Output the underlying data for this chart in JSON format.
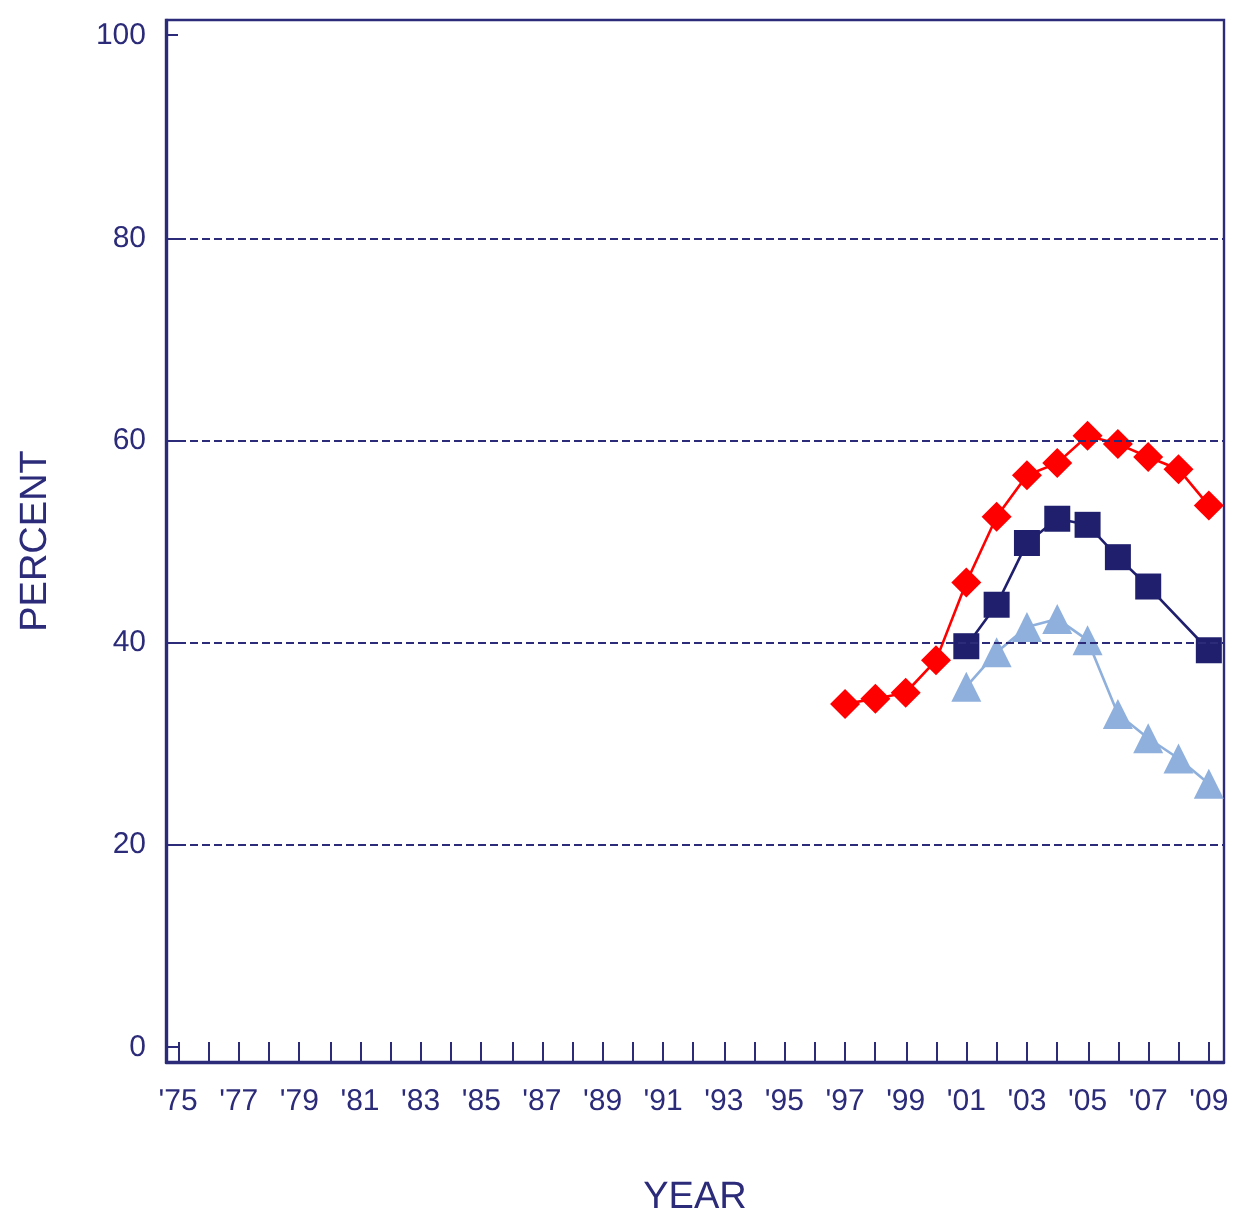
{
  "chart_data": {
    "type": "line",
    "xlabel": "YEAR",
    "ylabel": "PERCENT",
    "x": [
      1997,
      1998,
      1999,
      2000,
      2001,
      2002,
      2003,
      2004,
      2005,
      2006,
      2007,
      2008,
      2009
    ],
    "series": [
      {
        "color": "#ff0000",
        "marker": "diamond",
        "values": [
          33.9,
          34.4,
          35.0,
          38.2,
          45.9,
          52.4,
          56.5,
          57.7,
          60.4,
          59.6,
          58.3,
          57.1,
          53.5
        ]
      },
      {
        "color": "#1f1f6e",
        "marker": "square",
        "values": [
          null,
          null,
          null,
          null,
          39.6,
          43.7,
          49.8,
          52.2,
          51.6,
          48.4,
          45.5,
          null,
          39.2
        ]
      },
      {
        "color": "#8fb0dc",
        "marker": "triangle",
        "values": [
          null,
          null,
          null,
          null,
          35.6,
          39.0,
          41.5,
          42.3,
          40.2,
          32.9,
          30.5,
          28.5,
          26.0
        ]
      }
    ],
    "xlim": [
      1974.6,
      2009.5
    ],
    "xticks": [
      {
        "value": 1975,
        "label": "'75"
      },
      {
        "value": 1976,
        "label": null
      },
      {
        "value": 1977,
        "label": "'77"
      },
      {
        "value": 1978,
        "label": null
      },
      {
        "value": 1979,
        "label": "'79"
      },
      {
        "value": 1980,
        "label": null
      },
      {
        "value": 1981,
        "label": "'81"
      },
      {
        "value": 1982,
        "label": null
      },
      {
        "value": 1983,
        "label": "'83"
      },
      {
        "value": 1984,
        "label": null
      },
      {
        "value": 1985,
        "label": "'85"
      },
      {
        "value": 1986,
        "label": null
      },
      {
        "value": 1987,
        "label": "'87"
      },
      {
        "value": 1988,
        "label": null
      },
      {
        "value": 1989,
        "label": "'89"
      },
      {
        "value": 1990,
        "label": null
      },
      {
        "value": 1991,
        "label": "'91"
      },
      {
        "value": 1992,
        "label": null
      },
      {
        "value": 1993,
        "label": "'93"
      },
      {
        "value": 1994,
        "label": null
      },
      {
        "value": 1995,
        "label": "'95"
      },
      {
        "value": 1996,
        "label": null
      },
      {
        "value": 1997,
        "label": "'97"
      },
      {
        "value": 1998,
        "label": null
      },
      {
        "value": 1999,
        "label": "'99"
      },
      {
        "value": 2000,
        "label": null
      },
      {
        "value": 2001,
        "label": "'01"
      },
      {
        "value": 2002,
        "label": null
      },
      {
        "value": 2003,
        "label": "'03"
      },
      {
        "value": 2004,
        "label": null
      },
      {
        "value": 2005,
        "label": "'05"
      },
      {
        "value": 2006,
        "label": null
      },
      {
        "value": 2007,
        "label": "'07"
      },
      {
        "value": 2008,
        "label": null
      },
      {
        "value": 2009,
        "label": "'09"
      }
    ],
    "ylim": [
      -1.5,
      101.5
    ],
    "yticks": [
      0,
      20,
      40,
      60,
      80,
      100
    ],
    "grid": "y",
    "line_style": "solid"
  }
}
